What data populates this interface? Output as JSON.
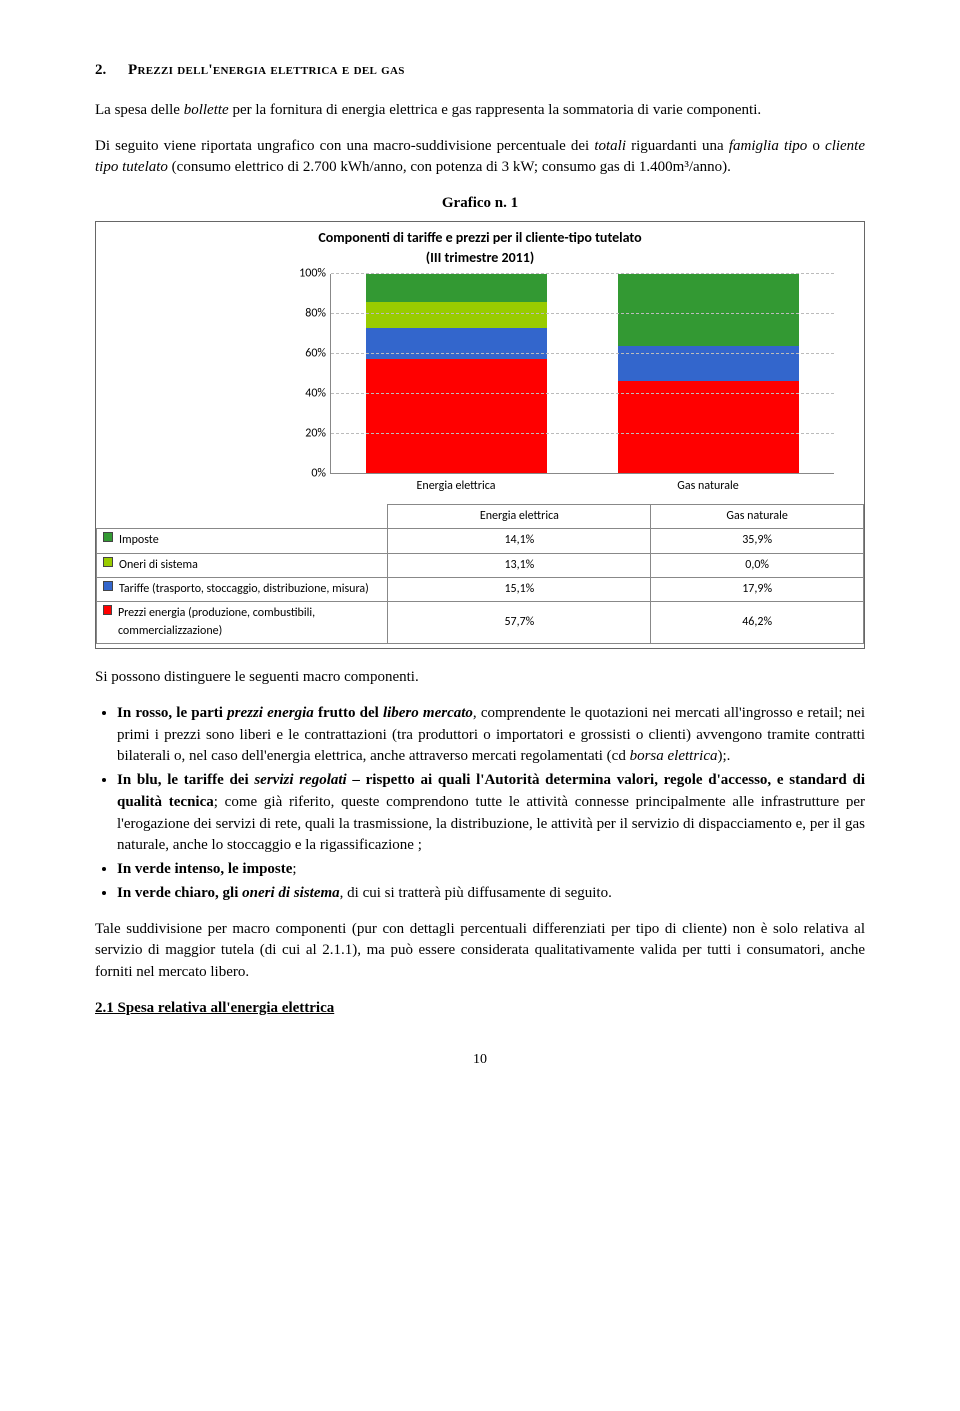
{
  "section": {
    "num": "2.",
    "title": "Prezzi dell'energia elettrica e del gas"
  },
  "p1_a": "La spesa delle ",
  "p1_b": "bollette",
  "p1_c": " per la fornitura di energia elettrica e gas rappresenta la sommatoria di varie componenti.",
  "p2_a": "Di seguito viene riportata ungrafico con una macro-suddivisione percentuale dei ",
  "p2_b": "totali",
  "p2_c": " riguardanti una ",
  "p2_d": "famiglia tipo",
  "p2_e": " o ",
  "p2_f": "cliente tipo tutelato",
  "p2_g": " (consumo elettrico di 2.700 kWh/anno, con potenza di 3 kW; consumo gas di 1.400m³/anno).",
  "chart": {
    "label": "Grafico n. 1",
    "title_l1": "Componenti di tariffe e prezzi per il cliente-tipo tutelato",
    "title_l2": "(III trimestre 2011)",
    "y_ticks": [
      "100%",
      "80%",
      "60%",
      "40%",
      "20%",
      "0%"
    ],
    "categories": [
      "Energia elettrica",
      "Gas naturale"
    ],
    "colors": {
      "imposte": "#339933",
      "oneri": "#99cc00",
      "tariffe": "#3366cc",
      "prezzi": "#ff0000",
      "grid": "#bbbbbb",
      "border": "#888888"
    },
    "rows": [
      {
        "label": "Imposte",
        "color_key": "imposte",
        "values": [
          "14,1%",
          "35,9%"
        ],
        "nums": [
          14.1,
          35.9
        ]
      },
      {
        "label": "Oneri di sistema",
        "color_key": "oneri",
        "values": [
          "13,1%",
          "0,0%"
        ],
        "nums": [
          13.1,
          0.0
        ]
      },
      {
        "label": "Tariffe (trasporto, stoccaggio, distribuzione, misura)",
        "color_key": "tariffe",
        "values": [
          "15,1%",
          "17,9%"
        ],
        "nums": [
          15.1,
          17.9
        ]
      },
      {
        "label": "Prezzi energia (produzione, combustibili, commercializzazione)",
        "color_key": "prezzi",
        "values": [
          "57,7%",
          "46,2%"
        ],
        "nums": [
          57.7,
          46.2
        ]
      }
    ]
  },
  "p3": "Si possono distinguere le seguenti macro componenti.",
  "bullets": [
    {
      "parts": [
        {
          "t": "In rosso, le parti ",
          "b": true
        },
        {
          "t": "prezzi energia",
          "b": true,
          "i": true
        },
        {
          "t": " frutto del ",
          "b": true
        },
        {
          "t": "libero mercato",
          "b": true,
          "i": true
        },
        {
          "t": ", comprendente le quotazioni nei mercati all'ingrosso e retail;  nei primi i prezzi sono liberi e le contrattazioni (tra produttori o importatori e grossisti o clienti) avvengono tramite contratti bilaterali o, nel caso dell'energia elettrica, anche attraverso mercati regolamentati (cd "
        },
        {
          "t": "borsa elettrica",
          "i": true
        },
        {
          "t": ");."
        }
      ]
    },
    {
      "parts": [
        {
          "t": "In blu, le tariffe dei ",
          "b": true
        },
        {
          "t": "servizi regolati",
          "b": true,
          "i": true
        },
        {
          "t": " – rispetto ai quali l'Autorità determina valori, regole d'accesso, e standard di qualità tecnica",
          "b": true
        },
        {
          "t": "; come già riferito, queste comprendono tutte le attività connesse principalmente alle infrastrutture per l'erogazione dei servizi di rete, quali la trasmissione, la distribuzione, le attività per il servizio di dispacciamento e, per il gas naturale, anche lo stoccaggio e la rigassificazione ;"
        }
      ]
    },
    {
      "parts": [
        {
          "t": "In verde intenso, le imposte",
          "b": true
        },
        {
          "t": ";"
        }
      ]
    },
    {
      "parts": [
        {
          "t": "In verde chiaro, gli ",
          "b": true
        },
        {
          "t": "oneri di sistema",
          "b": true,
          "i": true
        },
        {
          "t": ", di cui si tratterà più diffusamente di seguito."
        }
      ]
    }
  ],
  "p4": "Tale suddivisione per macro componenti (pur con dettagli percentuali differenziati per tipo di cliente) non è solo relativa al servizio di maggior tutela (di cui al 2.1.1), ma può essere considerata qualitativamente valida per tutti i consumatori, anche  forniti nel mercato libero.",
  "sub_heading": "2.1 Spesa relativa all'energia elettrica",
  "page_num": "10"
}
